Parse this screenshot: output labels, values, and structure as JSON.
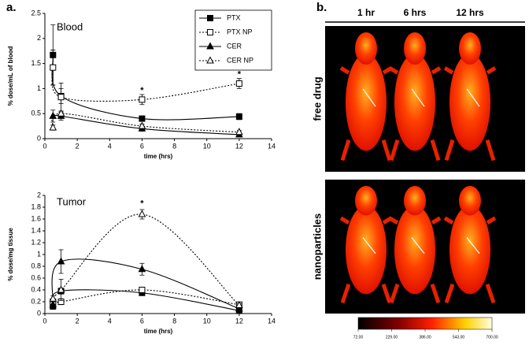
{
  "panel_label": "a.",
  "chart_data": [
    {
      "type": "line",
      "title": "Blood",
      "x_label": "time (hrs)",
      "y_label": "% dose/mL of blood",
      "xlim": [
        0,
        14
      ],
      "xticks": [
        0,
        2,
        4,
        6,
        8,
        10,
        12,
        14
      ],
      "ylim": [
        0,
        2.5
      ],
      "yticks": [
        0,
        0.5,
        1,
        1.5,
        2,
        2.5
      ],
      "x": [
        0.5,
        1,
        6,
        12
      ],
      "series": [
        {
          "name": "PTX",
          "color": "#000000",
          "marker": "square",
          "filled": true,
          "dotted": false,
          "values": [
            1.67,
            0.85,
            0.4,
            0.44
          ],
          "errors": [
            0.6,
            0.15,
            0.05,
            0.06
          ]
        },
        {
          "name": "PTX NP",
          "color": "#000000",
          "marker": "square",
          "filled": false,
          "dotted": true,
          "values": [
            1.42,
            0.83,
            0.78,
            1.1
          ],
          "errors": [
            0.35,
            0.28,
            0.1,
            0.1
          ]
        },
        {
          "name": "CER",
          "color": "#000000",
          "marker": "triangle",
          "filled": true,
          "dotted": false,
          "values": [
            0.45,
            0.45,
            0.2,
            0.08
          ],
          "errors": [
            0.12,
            0.08,
            0.05,
            0.04
          ]
        },
        {
          "name": "CER NP",
          "color": "#000000",
          "marker": "triangle",
          "filled": false,
          "dotted": true,
          "values": [
            0.22,
            0.5,
            0.25,
            0.13
          ],
          "errors": [
            0.05,
            0.05,
            0.04,
            0.03
          ]
        }
      ],
      "legend": true,
      "annotations": [
        "*",
        "*"
      ]
    },
    {
      "type": "line",
      "title": "Tumor",
      "x_label": "time (hrs)",
      "y_label": "% dose/mg tissue",
      "xlim": [
        0,
        14
      ],
      "xticks": [
        0,
        2,
        4,
        6,
        8,
        10,
        12,
        14
      ],
      "ylim": [
        0,
        2
      ],
      "yticks": [
        0,
        0.2,
        0.4,
        0.6,
        0.8,
        1,
        1.2,
        1.4,
        1.6,
        1.8,
        2
      ],
      "x": [
        0.5,
        1,
        6,
        12
      ],
      "series": [
        {
          "name": "PTX",
          "color": "#000000",
          "marker": "square",
          "filled": true,
          "dotted": false,
          "values": [
            0.12,
            0.38,
            0.35,
            0.05
          ],
          "errors": [
            0.03,
            0.05,
            0.03,
            0.02
          ]
        },
        {
          "name": "PTX NP",
          "color": "#000000",
          "marker": "square",
          "filled": false,
          "dotted": true,
          "values": [
            0.2,
            0.2,
            0.4,
            0.15
          ],
          "errors": [
            0.05,
            0.05,
            0.04,
            0.03
          ]
        },
        {
          "name": "CER",
          "color": "#000000",
          "marker": "triangle",
          "filled": true,
          "dotted": false,
          "values": [
            0.15,
            0.88,
            0.75,
            0.08
          ],
          "errors": [
            0.05,
            0.2,
            0.1,
            0.03
          ]
        },
        {
          "name": "CER NP",
          "color": "#000000",
          "marker": "triangle",
          "filled": false,
          "dotted": true,
          "values": [
            0.25,
            0.4,
            1.68,
            0.14
          ],
          "errors": [
            0.05,
            0.18,
            0.08,
            0.03
          ]
        }
      ],
      "legend": false,
      "annotations": [
        "*"
      ]
    }
  ],
  "panel_b": {
    "label": "b.",
    "columns": [
      "1 hr",
      "6 hrs",
      "12 hrs"
    ],
    "rows": [
      "free drug",
      "nanoparticles"
    ],
    "colorbar": {
      "lim": [
        72,
        700
      ],
      "ticks": [
        {
          "value": 72,
          "label": "72.00"
        },
        {
          "value": 229,
          "label": "229.00"
        },
        {
          "value": 386,
          "label": "386.00"
        },
        {
          "value": 543,
          "label": "543.00"
        },
        {
          "value": 700,
          "label": "700.00"
        }
      ]
    }
  }
}
